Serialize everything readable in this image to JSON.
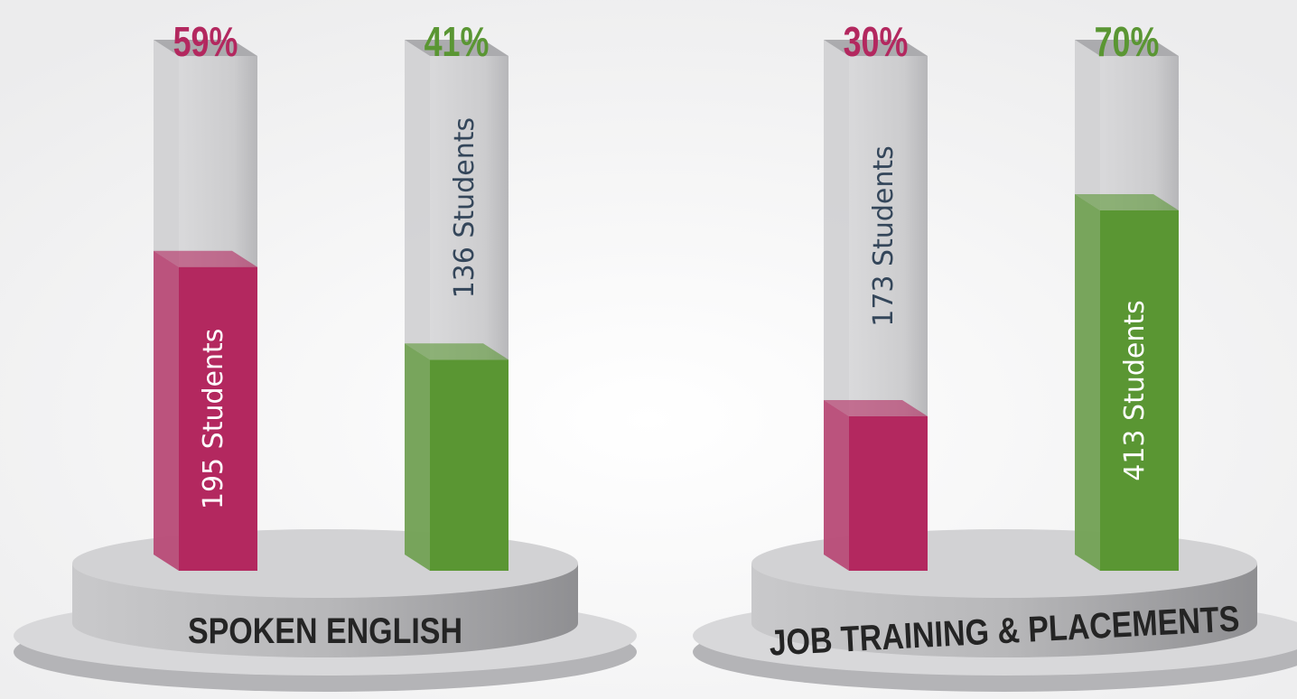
{
  "chart_data": [
    {
      "type": "bar",
      "title": "SPOKEN ENGLISH",
      "values": [
        59,
        41
      ],
      "value_labels": [
        "59%",
        "41%"
      ],
      "count_labels": [
        "195 Students",
        "136 Students"
      ],
      "colors": [
        "#b3285f",
        "#5a9633"
      ],
      "ylim": [
        0,
        100
      ]
    },
    {
      "type": "bar",
      "title": "JOB TRAINING & PLACEMENTS",
      "values": [
        30,
        70
      ],
      "value_labels": [
        "30%",
        "70%"
      ],
      "count_labels": [
        "173 Students",
        "413 Students"
      ],
      "colors": [
        "#b3285f",
        "#5a9633"
      ],
      "ylim": [
        0,
        100
      ]
    }
  ]
}
